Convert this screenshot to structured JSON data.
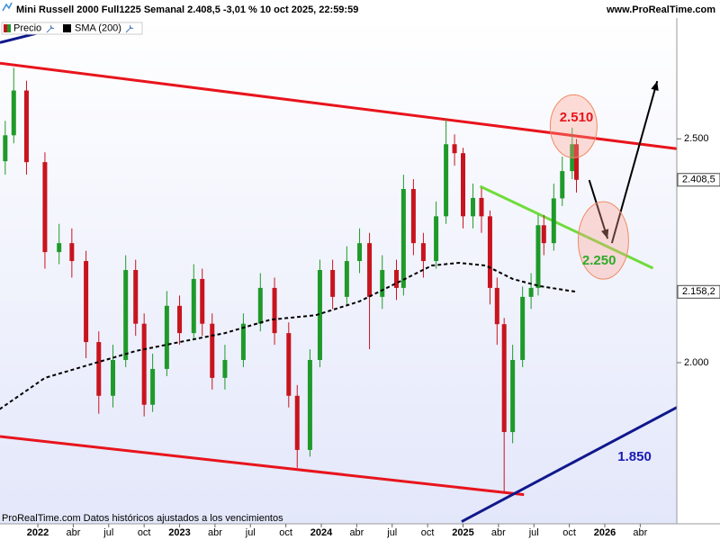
{
  "header": {
    "title": "Mini Russell 2000 Full1225 Semanal 2.408,5 -3,01 % 10 oct 2025, 22:59:59",
    "site": "www.ProRealTime.com"
  },
  "chart_data": {
    "type": "candlestick",
    "xlim": [
      2021.733,
      2026.508
    ],
    "xticks": [
      {
        "value": 2022,
        "label": "2022"
      },
      {
        "value": 2022.25,
        "label": "abr"
      },
      {
        "value": 2022.5,
        "label": "jul"
      },
      {
        "value": 2022.75,
        "label": "oct"
      },
      {
        "value": 2023,
        "label": "2023"
      },
      {
        "value": 2023.25,
        "label": "abr"
      },
      {
        "value": 2023.5,
        "label": "jul"
      },
      {
        "value": 2023.75,
        "label": "oct"
      },
      {
        "value": 2024,
        "label": "2024"
      },
      {
        "value": 2024.25,
        "label": "abr"
      },
      {
        "value": 2024.5,
        "label": "jul"
      },
      {
        "value": 2024.75,
        "label": "oct"
      },
      {
        "value": 2025,
        "label": "2025"
      },
      {
        "value": 2025.25,
        "label": "abr"
      },
      {
        "value": 2025.5,
        "label": "jul"
      },
      {
        "value": 2025.75,
        "label": "oct"
      },
      {
        "value": 2026,
        "label": "2026"
      },
      {
        "value": 2026.25,
        "label": "abr"
      }
    ],
    "ylim": [
      1640,
      2770
    ],
    "yticks": [
      {
        "value": 2500,
        "label": "2.500"
      },
      {
        "value": 2000,
        "label": "2.000"
      }
    ],
    "series": [
      {
        "name": "Precio",
        "type": "candlestick",
        "up_color": "#1f9a2a",
        "down_color": "#c8141e",
        "x": [
          2021.77,
          2021.83,
          2021.92,
          2022.05,
          2022.15,
          2022.24,
          2022.34,
          2022.43,
          2022.53,
          2022.62,
          2022.69,
          2022.75,
          2022.81,
          2022.91,
          2023.0,
          2023.1,
          2023.16,
          2023.23,
          2023.32,
          2023.45,
          2023.57,
          2023.67,
          2023.77,
          2023.83,
          2023.92,
          2023.99,
          2024.08,
          2024.18,
          2024.27,
          2024.34,
          2024.43,
          2024.53,
          2024.58,
          2024.65,
          2024.72,
          2024.81,
          2024.88,
          2024.94,
          2025.0,
          2025.07,
          2025.13,
          2025.19,
          2025.24,
          2025.29,
          2025.35,
          2025.42,
          2025.48,
          2025.53,
          2025.57,
          2025.64,
          2025.7,
          2025.77,
          2025.8
        ],
        "open": [
          2450,
          2508,
          2608,
          2448,
          2247,
          2267,
          2227,
          2046,
          1926,
          2006,
          2207,
          2087,
          1906,
          1986,
          2127,
          2066,
          2187,
          2087,
          1966,
          2006,
          2087,
          2167,
          2066,
          1926,
          1805,
          2006,
          2207,
          2147,
          2227,
          2267,
          2147,
          2207,
          2167,
          2388,
          2267,
          2227,
          2327,
          2488,
          2468,
          2327,
          2368,
          2327,
          2167,
          2086,
          1845,
          2006,
          2147,
          2167,
          2307,
          2267,
          2367,
          2428,
          2488
        ],
        "high": [
          2540,
          2659,
          2630,
          2470,
          2310,
          2300,
          2250,
          2070,
          2040,
          2240,
          2230,
          2110,
          2020,
          2160,
          2150,
          2220,
          2210,
          2110,
          2040,
          2110,
          2200,
          2190,
          2090,
          1950,
          2030,
          2230,
          2230,
          2260,
          2300,
          2290,
          2240,
          2230,
          2420,
          2410,
          2290,
          2360,
          2544,
          2510,
          2480,
          2400,
          2390,
          2340,
          2190,
          2100,
          2040,
          2170,
          2200,
          2330,
          2330,
          2400,
          2460,
          2525,
          2500
        ],
        "low": [
          2420,
          2490,
          2420,
          2210,
          2220,
          2190,
          2010,
          1886,
          1900,
          1990,
          2060,
          1880,
          1890,
          1970,
          2040,
          2050,
          2060,
          1940,
          1940,
          1990,
          2070,
          2040,
          1900,
          1765,
          1790,
          1990,
          2120,
          2130,
          2200,
          2030,
          2120,
          2140,
          2150,
          2240,
          2190,
          2210,
          2310,
          2440,
          2300,
          2300,
          2290,
          2130,
          2040,
          1709,
          1820,
          1990,
          2120,
          2150,
          2240,
          2250,
          2350,
          2410,
          2380
        ],
        "close": [
          2508,
          2608,
          2448,
          2247,
          2267,
          2227,
          2046,
          1926,
          2006,
          2207,
          2087,
          1906,
          1986,
          2127,
          2066,
          2187,
          2087,
          1966,
          2006,
          2087,
          2167,
          2066,
          1926,
          1805,
          2006,
          2207,
          2147,
          2227,
          2267,
          2147,
          2207,
          2167,
          2388,
          2267,
          2227,
          2327,
          2488,
          2468,
          2327,
          2368,
          2327,
          2167,
          2086,
          1845,
          2006,
          2147,
          2167,
          2307,
          2267,
          2367,
          2428,
          2488,
          2408.5
        ]
      },
      {
        "name": "SMA (200)",
        "type": "line",
        "color": "#000000",
        "dashed": true,
        "x": [
          2021.73,
          2022.05,
          2022.37,
          2022.69,
          2023.0,
          2023.32,
          2023.64,
          2023.96,
          2024.27,
          2024.59,
          2024.78,
          2024.97,
          2025.16,
          2025.35,
          2025.54,
          2025.8
        ],
        "values": [
          1896,
          1966,
          1996,
          2026,
          2046,
          2066,
          2096,
          2106,
          2137,
          2187,
          2217,
          2223,
          2217,
          2187,
          2171,
          2158.2
        ]
      }
    ],
    "price_markers": [
      {
        "value": 2408.5,
        "label": "2.408,5"
      },
      {
        "value": 2158.2,
        "label": "2.158,2"
      }
    ],
    "lines": [
      {
        "color": "#e8141c",
        "from": [
          2021.733,
          2669
        ],
        "to": [
          2026.508,
          2478
        ]
      },
      {
        "color": "#e8141c",
        "from": [
          2021.733,
          1835
        ],
        "to": [
          2025.43,
          1705
        ]
      },
      {
        "color": "#10188c",
        "from": [
          2021.733,
          2715
        ],
        "to": [
          2022.21,
          2753
        ]
      },
      {
        "color": "#10188c",
        "from": [
          2024.99,
          1645
        ],
        "to": [
          2026.508,
          1900
        ]
      },
      {
        "color": "#6fdc3c",
        "from": [
          2025.12,
          2394
        ],
        "to": [
          2026.34,
          2211
        ]
      }
    ],
    "arrows": [
      {
        "color": "#000000",
        "from": [
          2025.89,
          2408
        ],
        "to": [
          2026.02,
          2277
        ]
      },
      {
        "color": "#000000",
        "from": [
          2026.05,
          2267
        ],
        "to": [
          2026.37,
          2629
        ]
      }
    ],
    "annotations": [
      {
        "text": "2.510",
        "color": "#e8141c",
        "at": [
          2025.8,
          2547
        ],
        "ellipse": [
          2025.78,
          2528
        ]
      },
      {
        "text": "2.250",
        "color": "#2faa2a",
        "at": [
          2025.96,
          2227
        ],
        "ellipse": [
          2025.99,
          2273
        ]
      },
      {
        "text": "1.850",
        "color": "#1a1ab4",
        "at": [
          2026.21,
          1789
        ]
      }
    ]
  },
  "footer": "ProRealTime.com  Datos históricos ajustados a los vencimientos"
}
